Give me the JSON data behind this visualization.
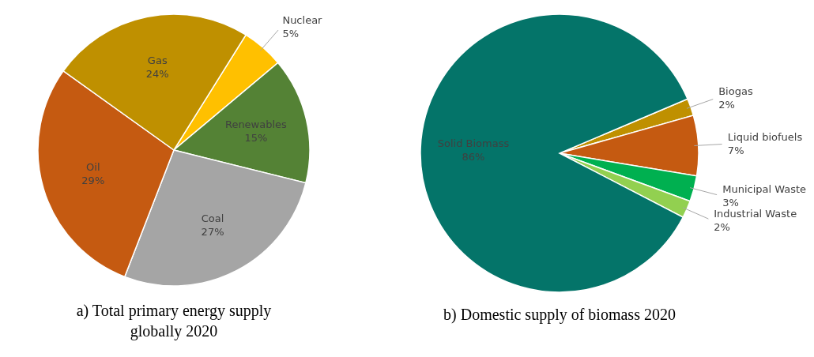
{
  "chart_data": [
    {
      "type": "pie",
      "title": "a) Total primary energy supply globally 2020",
      "categories": [
        "Nuclear",
        "Renewables",
        "Coal",
        "Oil",
        "Gas"
      ],
      "values": [
        5,
        15,
        27,
        29,
        24
      ],
      "value_labels": [
        "5%",
        "15%",
        "27%",
        "29%",
        "24%"
      ],
      "colors": [
        "#ffc000",
        "#548235",
        "#a5a5a5",
        "#c55a11",
        "#bf9000"
      ]
    },
    {
      "type": "pie",
      "title": "b) Domestic supply of biomass 2020",
      "categories": [
        "Biogas",
        "Liquid biofuels",
        "Municipal Waste",
        "Industrial Waste",
        "Solid Biomass"
      ],
      "values": [
        2,
        7,
        3,
        2,
        86
      ],
      "value_labels": [
        "2%",
        "7%",
        "3%",
        "2%",
        "86%"
      ],
      "colors": [
        "#bf9000",
        "#c55a11",
        "#00b050",
        "#92d050",
        "#047469"
      ]
    }
  ]
}
